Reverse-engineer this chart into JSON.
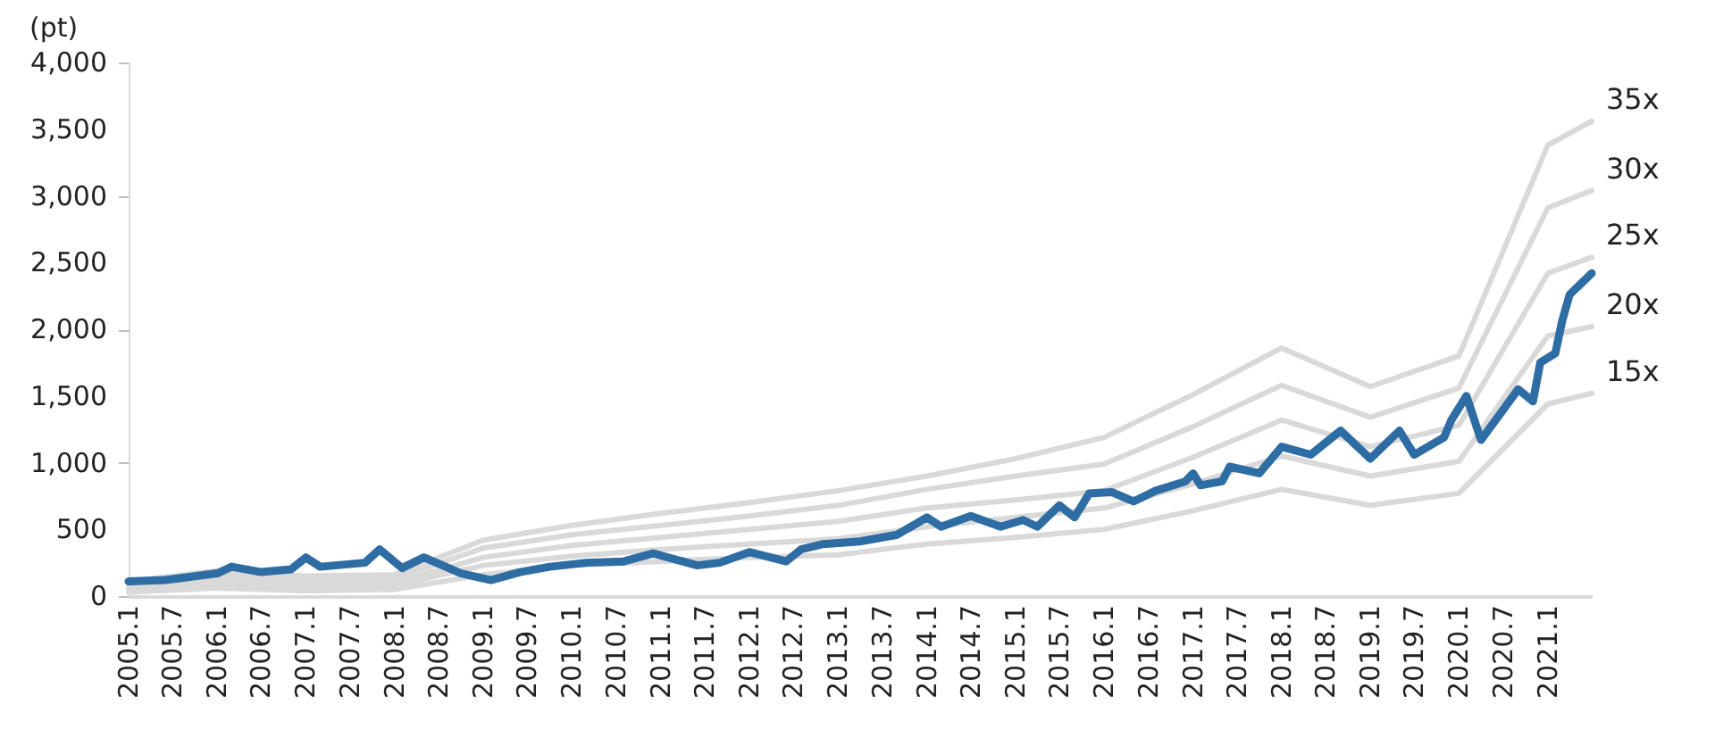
{
  "chart_data": {
    "type": "line",
    "ylabel": "(pt)",
    "xlim": [
      "2005-01",
      "2021-07"
    ],
    "xticks": [
      {
        "value": "2005-01",
        "label": "2005.1"
      },
      {
        "value": "2005-07",
        "label": "2005.7"
      },
      {
        "value": "2006-01",
        "label": "2006.1"
      },
      {
        "value": "2006-07",
        "label": "2006.7"
      },
      {
        "value": "2007-01",
        "label": "2007.1"
      },
      {
        "value": "2007-07",
        "label": "2007.7"
      },
      {
        "value": "2008-01",
        "label": "2008.1"
      },
      {
        "value": "2008-07",
        "label": "2008.7"
      },
      {
        "value": "2009-01",
        "label": "2009.1"
      },
      {
        "value": "2009-07",
        "label": "2009.7"
      },
      {
        "value": "2010-01",
        "label": "2010.1"
      },
      {
        "value": "2010-07",
        "label": "2010.7"
      },
      {
        "value": "2011-01",
        "label": "2011.1"
      },
      {
        "value": "2011-07",
        "label": "2011.7"
      },
      {
        "value": "2012-01",
        "label": "2012.1"
      },
      {
        "value": "2012-07",
        "label": "2012.7"
      },
      {
        "value": "2013-01",
        "label": "2013.1"
      },
      {
        "value": "2013-07",
        "label": "2013.7"
      },
      {
        "value": "2014-01",
        "label": "2014.1"
      },
      {
        "value": "2014-07",
        "label": "2014.7"
      },
      {
        "value": "2015-01",
        "label": "2015.1"
      },
      {
        "value": "2015-07",
        "label": "2015.7"
      },
      {
        "value": "2016-01",
        "label": "2016.1"
      },
      {
        "value": "2016-07",
        "label": "2016.7"
      },
      {
        "value": "2017-01",
        "label": "2017.1"
      },
      {
        "value": "2017-07",
        "label": "2017.7"
      },
      {
        "value": "2018-01",
        "label": "2018.1"
      },
      {
        "value": "2018-07",
        "label": "2018.7"
      },
      {
        "value": "2019-01",
        "label": "2019.1"
      },
      {
        "value": "2019-07",
        "label": "2019.7"
      },
      {
        "value": "2020-01",
        "label": "2020.1"
      },
      {
        "value": "2020-07",
        "label": "2020.7"
      },
      {
        "value": "2021-01",
        "label": "2021.1"
      }
    ],
    "ylim": [
      0,
      4000
    ],
    "yticks": [
      0,
      500,
      {
        "value": 1000,
        "label": "1,000"
      },
      {
        "value": 1500,
        "label": "1,500"
      },
      {
        "value": 2000,
        "label": "2,000"
      },
      {
        "value": 2500,
        "label": "2,500"
      },
      {
        "value": 3000,
        "label": "3,000"
      },
      {
        "value": 3500,
        "label": "3,500"
      },
      {
        "value": 4000,
        "label": "4,000"
      }
    ],
    "grid": false,
    "legend": false,
    "marker": "none",
    "line_style": "solid",
    "series": [
      {
        "name": "35x",
        "color": "#d9d9d9",
        "x": [
          "2005-01",
          "2006-01",
          "2007-01",
          "2008-01",
          "2009-01",
          "2010-01",
          "2011-01",
          "2012-01",
          "2013-01",
          "2014-01",
          "2015-01",
          "2016-01",
          "2017-01",
          "2018-01",
          "2019-01",
          "2020-01",
          "2021-01",
          "2021-07"
        ],
        "values": [
          110,
          190,
          150,
          160,
          420,
          530,
          620,
          700,
          790,
          900,
          1030,
          1190,
          1510,
          1860,
          1570,
          1800,
          3380,
          3560
        ]
      },
      {
        "name": "30x",
        "color": "#d9d9d9",
        "x": [
          "2005-01",
          "2006-01",
          "2007-01",
          "2008-01",
          "2009-01",
          "2010-01",
          "2011-01",
          "2012-01",
          "2013-01",
          "2014-01",
          "2015-01",
          "2016-01",
          "2017-01",
          "2018-01",
          "2019-01",
          "2020-01",
          "2021-01",
          "2021-07"
        ],
        "values": [
          90,
          160,
          120,
          130,
          360,
          460,
          530,
          600,
          680,
          800,
          900,
          990,
          1270,
          1580,
          1340,
          1560,
          2910,
          3040
        ]
      },
      {
        "name": "25x",
        "color": "#d9d9d9",
        "x": [
          "2005-01",
          "2006-01",
          "2007-01",
          "2008-01",
          "2009-01",
          "2010-01",
          "2011-01",
          "2012-01",
          "2013-01",
          "2014-01",
          "2015-01",
          "2016-01",
          "2017-01",
          "2018-01",
          "2019-01",
          "2020-01",
          "2021-01",
          "2021-07"
        ],
        "values": [
          70,
          120,
          100,
          100,
          290,
          380,
          440,
          500,
          560,
          660,
          720,
          790,
          1040,
          1320,
          1120,
          1280,
          2420,
          2540
        ]
      },
      {
        "name": "20x",
        "color": "#d9d9d9",
        "x": [
          "2005-01",
          "2006-01",
          "2007-01",
          "2008-01",
          "2009-01",
          "2010-01",
          "2011-01",
          "2012-01",
          "2013-01",
          "2014-01",
          "2015-01",
          "2016-01",
          "2017-01",
          "2018-01",
          "2019-01",
          "2020-01",
          "2021-01",
          "2021-07"
        ],
        "values": [
          50,
          90,
          70,
          80,
          230,
          300,
          350,
          390,
          430,
          520,
          590,
          660,
          840,
          1050,
          900,
          1010,
          1950,
          2020
        ]
      },
      {
        "name": "15x",
        "color": "#d9d9d9",
        "x": [
          "2005-01",
          "2006-01",
          "2007-01",
          "2008-01",
          "2009-01",
          "2010-01",
          "2011-01",
          "2012-01",
          "2013-01",
          "2014-01",
          "2015-01",
          "2016-01",
          "2017-01",
          "2018-01",
          "2019-01",
          "2020-01",
          "2021-01",
          "2021-07"
        ],
        "values": [
          30,
          60,
          40,
          50,
          160,
          230,
          260,
          290,
          310,
          390,
          440,
          500,
          640,
          800,
          680,
          770,
          1440,
          1520
        ]
      },
      {
        "color": "#2e6ca4",
        "x": [
          "2005-01",
          "2005-06",
          "2006-01",
          "2006-03",
          "2006-07",
          "2006-11",
          "2007-01",
          "2007-03",
          "2007-09",
          "2007-11",
          "2008-02",
          "2008-05",
          "2008-10",
          "2009-02",
          "2009-06",
          "2009-10",
          "2010-03",
          "2010-08",
          "2010-12",
          "2011-06",
          "2011-09",
          "2012-01",
          "2012-06",
          "2012-08",
          "2012-11",
          "2013-04",
          "2013-09",
          "2014-01",
          "2014-03",
          "2014-07",
          "2014-11",
          "2015-02",
          "2015-04",
          "2015-07",
          "2015-09",
          "2015-11",
          "2016-02",
          "2016-05",
          "2016-08",
          "2016-12",
          "2017-01",
          "2017-02",
          "2017-05",
          "2017-06",
          "2017-10",
          "2018-01",
          "2018-05",
          "2018-09",
          "2019-01",
          "2019-05",
          "2019-07",
          "2019-11",
          "2019-12",
          "2020-02",
          "2020-04",
          "2020-09",
          "2020-11",
          "2020-12",
          "2021-02",
          "2021-03",
          "2021-04",
          "2021-07"
        ],
        "values": [
          110,
          120,
          170,
          220,
          180,
          200,
          290,
          220,
          250,
          350,
          210,
          290,
          170,
          120,
          180,
          220,
          250,
          260,
          320,
          230,
          250,
          330,
          260,
          350,
          390,
          410,
          460,
          590,
          520,
          600,
          520,
          570,
          520,
          680,
          590,
          770,
          780,
          710,
          790,
          860,
          920,
          830,
          860,
          970,
          920,
          1120,
          1060,
          1240,
          1030,
          1240,
          1060,
          1190,
          1320,
          1500,
          1170,
          1550,
          1460,
          1750,
          1820,
          2060,
          2260,
          2420
        ]
      }
    ]
  }
}
